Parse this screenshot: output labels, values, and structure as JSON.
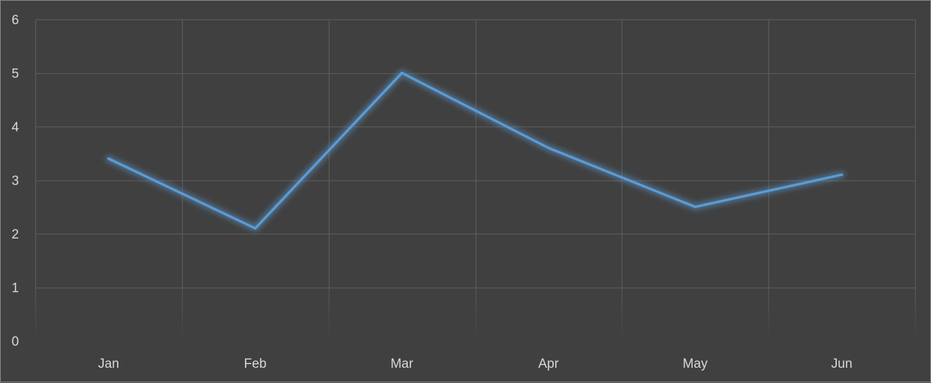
{
  "chart_data": {
    "type": "line",
    "categories": [
      "Jan",
      "Feb",
      "Mar",
      "Apr",
      "May",
      "Jun"
    ],
    "series": [
      {
        "values": [
          3.4,
          2.1,
          5.0,
          3.6,
          2.5,
          3.1
        ]
      }
    ],
    "ylim": [
      0,
      6
    ],
    "y_ticks": [
      "0",
      "1",
      "2",
      "3",
      "4",
      "5",
      "6"
    ],
    "grid": true,
    "title": "",
    "xlabel": "",
    "ylabel": "",
    "colors": {
      "background": "#404040",
      "gridline": "#595959",
      "line": "#5b9bd5",
      "glow": "#5b9bd5",
      "text": "#d9d9d9"
    }
  }
}
